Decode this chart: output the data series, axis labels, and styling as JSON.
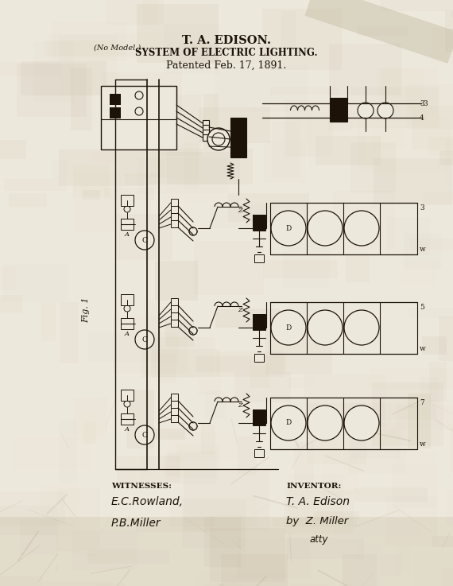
{
  "title1": "T. A. EDISON.",
  "title2": "SYSTEM OF ELECTRIC LIGHTING.",
  "title3": "Patented Feb. 17, 1891.",
  "no_model": "(No Model.)",
  "witnesses_label": "WITNESSES:",
  "inventor_label": "INVENTOR:",
  "witness1": "E.C.Rowland,",
  "witness2": "P.B.Miller",
  "inventor1": "T. A. Edison",
  "inventor2": "by  Z. Miller",
  "inventor3": "atty",
  "fig_label": "Fig. 1",
  "bg_light": "#ede8dc",
  "bg_dark": "#c8bfa8",
  "ink": "#1c1208",
  "fig_width": 5.7,
  "fig_height": 7.37,
  "dpi": 100
}
